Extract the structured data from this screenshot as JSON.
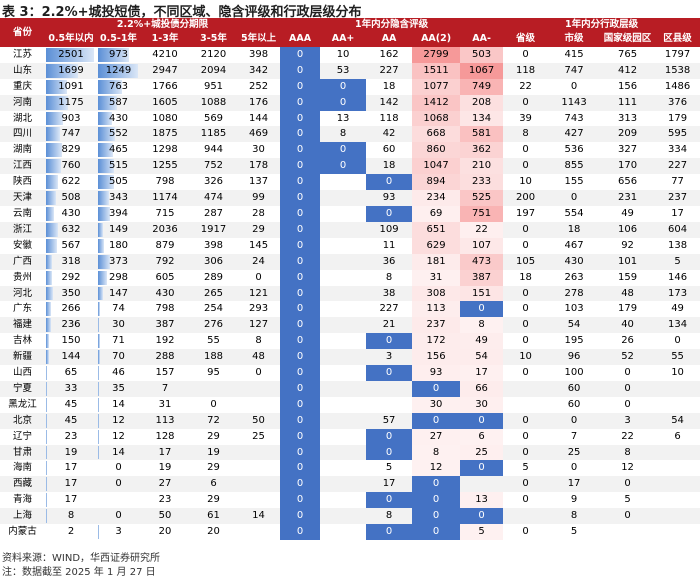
{
  "title": "表 3：2.2%+城投短债，不同区域、隐含评级和行政层级分布",
  "table": {
    "corner": "省份",
    "groups": [
      {
        "label": "2.2%+城投债分期限",
        "span": 5
      },
      {
        "label": "1年内分隐含评级",
        "span": 5
      },
      {
        "label": "1年内分行政层级",
        "span": 4
      }
    ],
    "columns": [
      "0.5年以内",
      "0.5-1年",
      "1-3年",
      "3-5年",
      "5年以上",
      "AAA",
      "AA+",
      "AA",
      "AA(2)",
      "AA-",
      "省级",
      "市级",
      "国家级园区",
      "区县级"
    ],
    "rows": [
      {
        "province": "江苏",
        "values": [
          2501,
          973,
          4210,
          2120,
          398,
          0,
          10,
          162,
          2799,
          503,
          0,
          415,
          765,
          1797
        ]
      },
      {
        "province": "山东",
        "values": [
          1699,
          1249,
          2947,
          2094,
          342,
          0,
          53,
          227,
          1511,
          1067,
          118,
          747,
          412,
          1538
        ]
      },
      {
        "province": "重庆",
        "values": [
          1091,
          763,
          1766,
          951,
          252,
          0,
          0,
          18,
          1077,
          749,
          22,
          0,
          156,
          1486
        ]
      },
      {
        "province": "河南",
        "values": [
          1175,
          587,
          1605,
          1088,
          176,
          0,
          0,
          142,
          1412,
          208,
          0,
          1143,
          111,
          376
        ]
      },
      {
        "province": "湖北",
        "values": [
          903,
          430,
          1080,
          569,
          144,
          0,
          13,
          118,
          1068,
          134,
          39,
          743,
          313,
          179
        ]
      },
      {
        "province": "四川",
        "values": [
          747,
          552,
          1875,
          1185,
          469,
          0,
          8,
          42,
          668,
          581,
          8,
          427,
          209,
          595
        ]
      },
      {
        "province": "湖南",
        "values": [
          829,
          465,
          1298,
          944,
          30,
          0,
          0,
          60,
          860,
          362,
          0,
          536,
          327,
          334
        ]
      },
      {
        "province": "江西",
        "values": [
          760,
          515,
          1255,
          752,
          178,
          0,
          0,
          18,
          1047,
          210,
          0,
          855,
          170,
          227
        ]
      },
      {
        "province": "陕西",
        "values": [
          622,
          505,
          798,
          326,
          137,
          0,
          null,
          0,
          894,
          233,
          10,
          155,
          656,
          77
        ]
      },
      {
        "province": "天津",
        "values": [
          508,
          343,
          1174,
          474,
          99,
          0,
          null,
          93,
          234,
          525,
          200,
          0,
          231,
          237
        ]
      },
      {
        "province": "云南",
        "values": [
          430,
          394,
          715,
          287,
          28,
          0,
          null,
          0,
          69,
          751,
          197,
          554,
          49,
          17
        ]
      },
      {
        "province": "浙江",
        "values": [
          632,
          149,
          2036,
          1917,
          29,
          0,
          null,
          109,
          651,
          22,
          0,
          18,
          106,
          604
        ]
      },
      {
        "province": "安徽",
        "values": [
          567,
          180,
          879,
          398,
          145,
          0,
          null,
          11,
          629,
          107,
          0,
          467,
          92,
          138
        ]
      },
      {
        "province": "广西",
        "values": [
          318,
          373,
          792,
          306,
          24,
          0,
          null,
          36,
          181,
          473,
          105,
          430,
          101,
          5
        ]
      },
      {
        "province": "贵州",
        "values": [
          292,
          298,
          605,
          289,
          0,
          0,
          null,
          8,
          31,
          387,
          18,
          263,
          159,
          146
        ]
      },
      {
        "province": "河北",
        "values": [
          350,
          147,
          430,
          265,
          121,
          0,
          null,
          38,
          308,
          151,
          0,
          278,
          48,
          173
        ]
      },
      {
        "province": "广东",
        "values": [
          266,
          74,
          798,
          254,
          293,
          0,
          null,
          227,
          113,
          0,
          0,
          103,
          179,
          49
        ]
      },
      {
        "province": "福建",
        "values": [
          236,
          30,
          387,
          276,
          127,
          0,
          null,
          21,
          237,
          8,
          0,
          54,
          40,
          134
        ]
      },
      {
        "province": "吉林",
        "values": [
          150,
          71,
          192,
          55,
          8,
          0,
          null,
          0,
          172,
          49,
          0,
          195,
          26,
          0
        ]
      },
      {
        "province": "新疆",
        "values": [
          144,
          70,
          288,
          188,
          48,
          0,
          null,
          3,
          156,
          54,
          10,
          96,
          52,
          55
        ]
      },
      {
        "province": "山西",
        "values": [
          65,
          46,
          157,
          95,
          0,
          0,
          null,
          0,
          93,
          17,
          0,
          100,
          0,
          10
        ]
      },
      {
        "province": "宁夏",
        "values": [
          33,
          35,
          7,
          null,
          null,
          0,
          null,
          null,
          0,
          66,
          null,
          60,
          0,
          null
        ]
      },
      {
        "province": "黑龙江",
        "values": [
          45,
          14,
          31,
          0,
          null,
          0,
          null,
          null,
          30,
          30,
          null,
          60,
          0,
          null
        ]
      },
      {
        "province": "北京",
        "values": [
          45,
          12,
          113,
          72,
          50,
          0,
          null,
          57,
          0,
          0,
          0,
          0,
          3,
          54
        ]
      },
      {
        "province": "辽宁",
        "values": [
          23,
          12,
          128,
          29,
          25,
          0,
          null,
          0,
          27,
          6,
          0,
          7,
          22,
          6
        ]
      },
      {
        "province": "甘肃",
        "values": [
          19,
          14,
          17,
          19,
          null,
          0,
          null,
          0,
          8,
          25,
          0,
          25,
          8,
          null
        ]
      },
      {
        "province": "海南",
        "values": [
          17,
          0,
          19,
          29,
          null,
          0,
          null,
          5,
          12,
          0,
          5,
          0,
          12,
          null
        ]
      },
      {
        "province": "西藏",
        "values": [
          17,
          0,
          27,
          6,
          null,
          0,
          null,
          17,
          0,
          null,
          0,
          17,
          0,
          null
        ]
      },
      {
        "province": "青海",
        "values": [
          17,
          null,
          23,
          29,
          null,
          0,
          null,
          0,
          0,
          13,
          0,
          9,
          5,
          null
        ]
      },
      {
        "province": "上海",
        "values": [
          8,
          0,
          50,
          61,
          14,
          0,
          null,
          8,
          0,
          0,
          null,
          8,
          0,
          null
        ]
      },
      {
        "province": "内蒙古",
        "values": [
          2,
          3,
          20,
          20,
          null,
          0,
          null,
          0,
          0,
          5,
          0,
          5,
          null,
          null
        ]
      }
    ]
  },
  "notes": [
    "资料来源：WIND，华西证券研究所",
    "注：数据截至 2025 年 1 月 27 日"
  ]
}
